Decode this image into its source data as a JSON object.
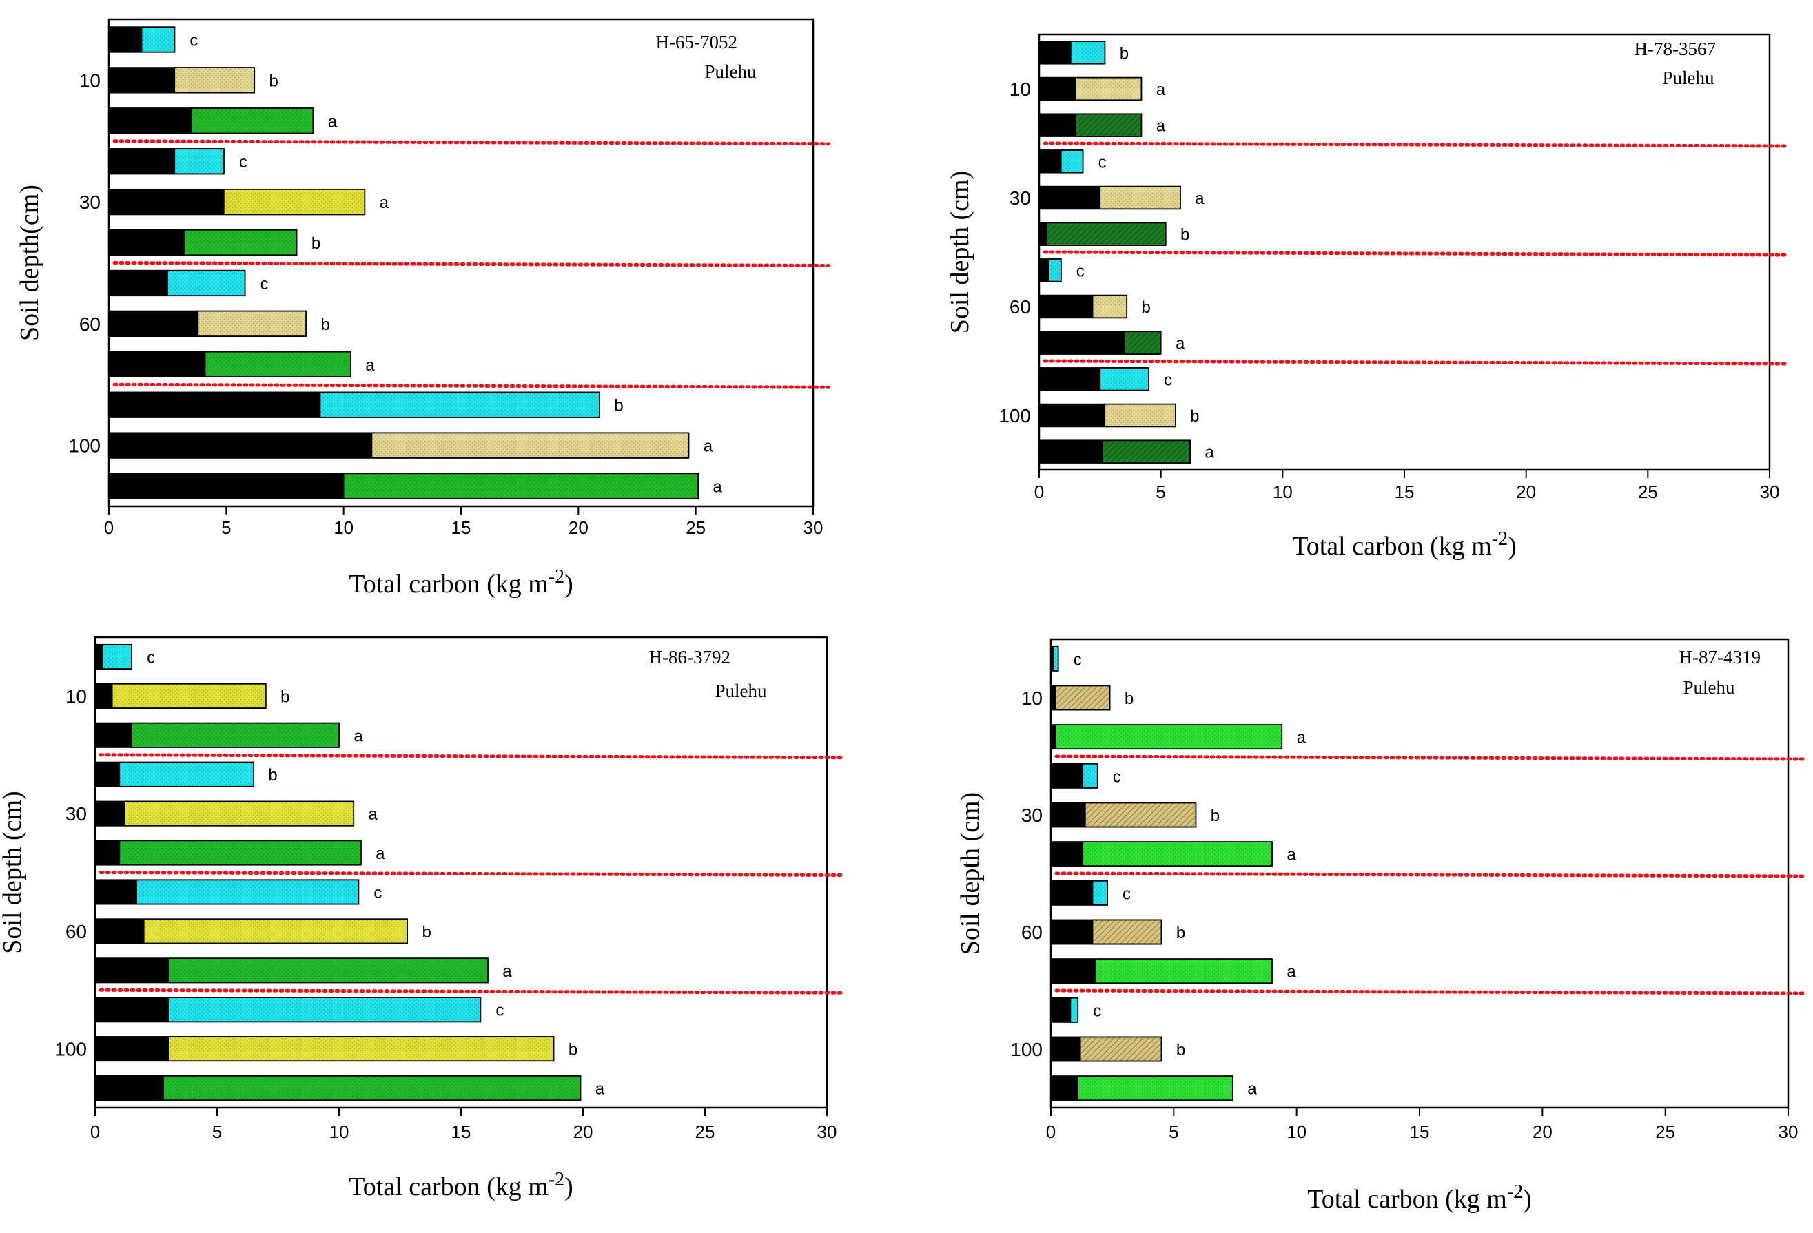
{
  "figure": {
    "description_note": ""
  },
  "colors": {
    "inner": "#000000",
    "cyan": "#22e3ee",
    "tan": "#e4d590",
    "olive_tan": "#d6c27a",
    "bright_yellow": "#e4e03a",
    "green": "#22b82a",
    "dark_green": "#1c7a22",
    "bright_green": "#2ee035",
    "separator": "#e8141c",
    "axis": "#000000"
  },
  "chart_data": [
    {
      "type": "bar",
      "orientation": "horizontal",
      "stacked": true,
      "title": "H-65-7052",
      "subtitle": "Pulehu",
      "xlabel": "Total carbon (kg m",
      "xlabel_sup": "-2",
      "xlabel_close": ")",
      "ylabel": "Soil depth(cm)",
      "xlim": [
        0,
        30
      ],
      "xticks": [
        "0",
        "5",
        "10",
        "15",
        "20",
        "25",
        "30"
      ],
      "depth_labels": [
        "10",
        "30",
        "60",
        "100"
      ],
      "bars": [
        {
          "depth": "10",
          "inner": 1.4,
          "total": 2.8,
          "fill": "cyan",
          "letter": "c"
        },
        {
          "depth": "10",
          "inner": 2.8,
          "total": 6.2,
          "fill": "tan",
          "letter": "b"
        },
        {
          "depth": "10",
          "inner": 3.5,
          "total": 8.7,
          "fill": "green",
          "letter": "a"
        },
        {
          "depth": "30",
          "inner": 2.8,
          "total": 4.9,
          "fill": "cyan",
          "letter": "c"
        },
        {
          "depth": "30",
          "inner": 4.9,
          "total": 10.9,
          "fill": "bright_yellow",
          "letter": "a"
        },
        {
          "depth": "30",
          "inner": 3.2,
          "total": 8.0,
          "fill": "green",
          "letter": "b"
        },
        {
          "depth": "60",
          "inner": 2.5,
          "total": 5.8,
          "fill": "cyan",
          "letter": "c"
        },
        {
          "depth": "60",
          "inner": 3.8,
          "total": 8.4,
          "fill": "tan",
          "letter": "b"
        },
        {
          "depth": "60",
          "inner": 4.1,
          "total": 10.3,
          "fill": "green",
          "letter": "a"
        },
        {
          "depth": "100",
          "inner": 9.0,
          "total": 20.9,
          "fill": "cyan",
          "letter": "b"
        },
        {
          "depth": "100",
          "inner": 11.2,
          "total": 24.7,
          "fill": "tan",
          "letter": "a"
        },
        {
          "depth": "100",
          "inner": 10.0,
          "total": 25.1,
          "fill": "green",
          "letter": "a"
        }
      ]
    },
    {
      "type": "bar",
      "orientation": "horizontal",
      "stacked": true,
      "title": "H-78-3567",
      "subtitle": "Pulehu",
      "xlabel": "Total carbon (kg m",
      "xlabel_sup": "-2",
      "xlabel_close": ")",
      "ylabel": "Soil depth (cm)",
      "xlim": [
        0,
        30
      ],
      "xticks": [
        "0",
        "5",
        "10",
        "15",
        "20",
        "25",
        "30"
      ],
      "depth_labels": [
        "10",
        "30",
        "60",
        "100"
      ],
      "bars": [
        {
          "depth": "10",
          "inner": 1.3,
          "total": 2.7,
          "fill": "cyan",
          "letter": "b"
        },
        {
          "depth": "10",
          "inner": 1.5,
          "total": 4.2,
          "fill": "tan",
          "letter": "a"
        },
        {
          "depth": "10",
          "inner": 1.5,
          "total": 4.2,
          "fill": "dark_green",
          "letter": "a"
        },
        {
          "depth": "30",
          "inner": 0.9,
          "total": 1.8,
          "fill": "cyan",
          "letter": "c"
        },
        {
          "depth": "30",
          "inner": 2.5,
          "total": 5.8,
          "fill": "tan",
          "letter": "a"
        },
        {
          "depth": "30",
          "inner": 0.3,
          "total": 5.2,
          "fill": "dark_green",
          "letter": "b"
        },
        {
          "depth": "60",
          "inner": 0.4,
          "total": 0.9,
          "fill": "cyan",
          "letter": "c"
        },
        {
          "depth": "60",
          "inner": 2.2,
          "total": 3.6,
          "fill": "tan",
          "letter": "b"
        },
        {
          "depth": "60",
          "inner": 3.5,
          "total": 5.0,
          "fill": "dark_green",
          "letter": "a"
        },
        {
          "depth": "100",
          "inner": 2.5,
          "total": 4.5,
          "fill": "cyan",
          "letter": "c"
        },
        {
          "depth": "100",
          "inner": 2.7,
          "total": 5.6,
          "fill": "tan",
          "letter": "b"
        },
        {
          "depth": "100",
          "inner": 2.6,
          "total": 6.2,
          "fill": "dark_green",
          "letter": "a"
        }
      ]
    },
    {
      "type": "bar",
      "orientation": "horizontal",
      "stacked": true,
      "title": "H-86-3792",
      "subtitle": "Pulehu",
      "xlabel": "Total carbon (kg m",
      "xlabel_sup": "-2",
      "xlabel_close": ")",
      "ylabel": "Soil depth (cm)",
      "xlim": [
        0,
        30
      ],
      "xticks": [
        "0",
        "5",
        "10",
        "15",
        "20",
        "25",
        "30"
      ],
      "depth_labels": [
        "10",
        "30",
        "60",
        "100"
      ],
      "bars": [
        {
          "depth": "10",
          "inner": 0.3,
          "total": 1.5,
          "fill": "cyan",
          "letter": "c"
        },
        {
          "depth": "10",
          "inner": 0.7,
          "total": 7.0,
          "fill": "bright_yellow",
          "letter": "b"
        },
        {
          "depth": "10",
          "inner": 1.5,
          "total": 10.0,
          "fill": "green",
          "letter": "a"
        },
        {
          "depth": "30",
          "inner": 1.0,
          "total": 6.5,
          "fill": "cyan",
          "letter": "b"
        },
        {
          "depth": "30",
          "inner": 1.2,
          "total": 10.6,
          "fill": "bright_yellow",
          "letter": "a"
        },
        {
          "depth": "30",
          "inner": 1.0,
          "total": 10.9,
          "fill": "green",
          "letter": "a"
        },
        {
          "depth": "60",
          "inner": 1.7,
          "total": 10.8,
          "fill": "cyan",
          "letter": "c"
        },
        {
          "depth": "60",
          "inner": 2.0,
          "total": 12.8,
          "fill": "bright_yellow",
          "letter": "b"
        },
        {
          "depth": "60",
          "inner": 3.0,
          "total": 16.1,
          "fill": "green",
          "letter": "a"
        },
        {
          "depth": "100",
          "inner": 3.0,
          "total": 15.8,
          "fill": "cyan",
          "letter": "c"
        },
        {
          "depth": "100",
          "inner": 3.0,
          "total": 18.8,
          "fill": "bright_yellow",
          "letter": "b"
        },
        {
          "depth": "100",
          "inner": 2.8,
          "total": 19.9,
          "fill": "green",
          "letter": "a"
        }
      ]
    },
    {
      "type": "bar",
      "orientation": "horizontal",
      "stacked": true,
      "title": "H-87-4319",
      "subtitle": "Pulehu",
      "xlabel": "Total carbon (kg m",
      "xlabel_sup": "-2",
      "xlabel_close": ")",
      "ylabel": "Soil depth (cm)",
      "xlim": [
        0,
        30
      ],
      "xticks": [
        "0",
        "5",
        "10",
        "15",
        "20",
        "25",
        "30"
      ],
      "depth_labels": [
        "10",
        "30",
        "60",
        "100"
      ],
      "bars": [
        {
          "depth": "10",
          "inner": 0.1,
          "total": 0.3,
          "fill": "cyan",
          "letter": "c"
        },
        {
          "depth": "10",
          "inner": 0.2,
          "total": 2.4,
          "fill": "olive_tan",
          "letter": "b"
        },
        {
          "depth": "10",
          "inner": 0.2,
          "total": 9.4,
          "fill": "bright_green",
          "letter": "a"
        },
        {
          "depth": "30",
          "inner": 1.3,
          "total": 1.9,
          "fill": "cyan",
          "letter": "c"
        },
        {
          "depth": "30",
          "inner": 1.4,
          "total": 5.9,
          "fill": "olive_tan",
          "letter": "b"
        },
        {
          "depth": "30",
          "inner": 1.3,
          "total": 9.0,
          "fill": "bright_green",
          "letter": "a"
        },
        {
          "depth": "60",
          "inner": 1.7,
          "total": 2.3,
          "fill": "cyan",
          "letter": "c"
        },
        {
          "depth": "60",
          "inner": 1.7,
          "total": 4.5,
          "fill": "olive_tan",
          "letter": "b"
        },
        {
          "depth": "60",
          "inner": 1.8,
          "total": 9.0,
          "fill": "bright_green",
          "letter": "a"
        },
        {
          "depth": "100",
          "inner": 0.8,
          "total": 1.1,
          "fill": "cyan",
          "letter": "c"
        },
        {
          "depth": "100",
          "inner": 1.2,
          "total": 4.5,
          "fill": "olive_tan",
          "letter": "b"
        },
        {
          "depth": "100",
          "inner": 1.1,
          "total": 7.4,
          "fill": "bright_green",
          "letter": "a"
        }
      ]
    }
  ]
}
